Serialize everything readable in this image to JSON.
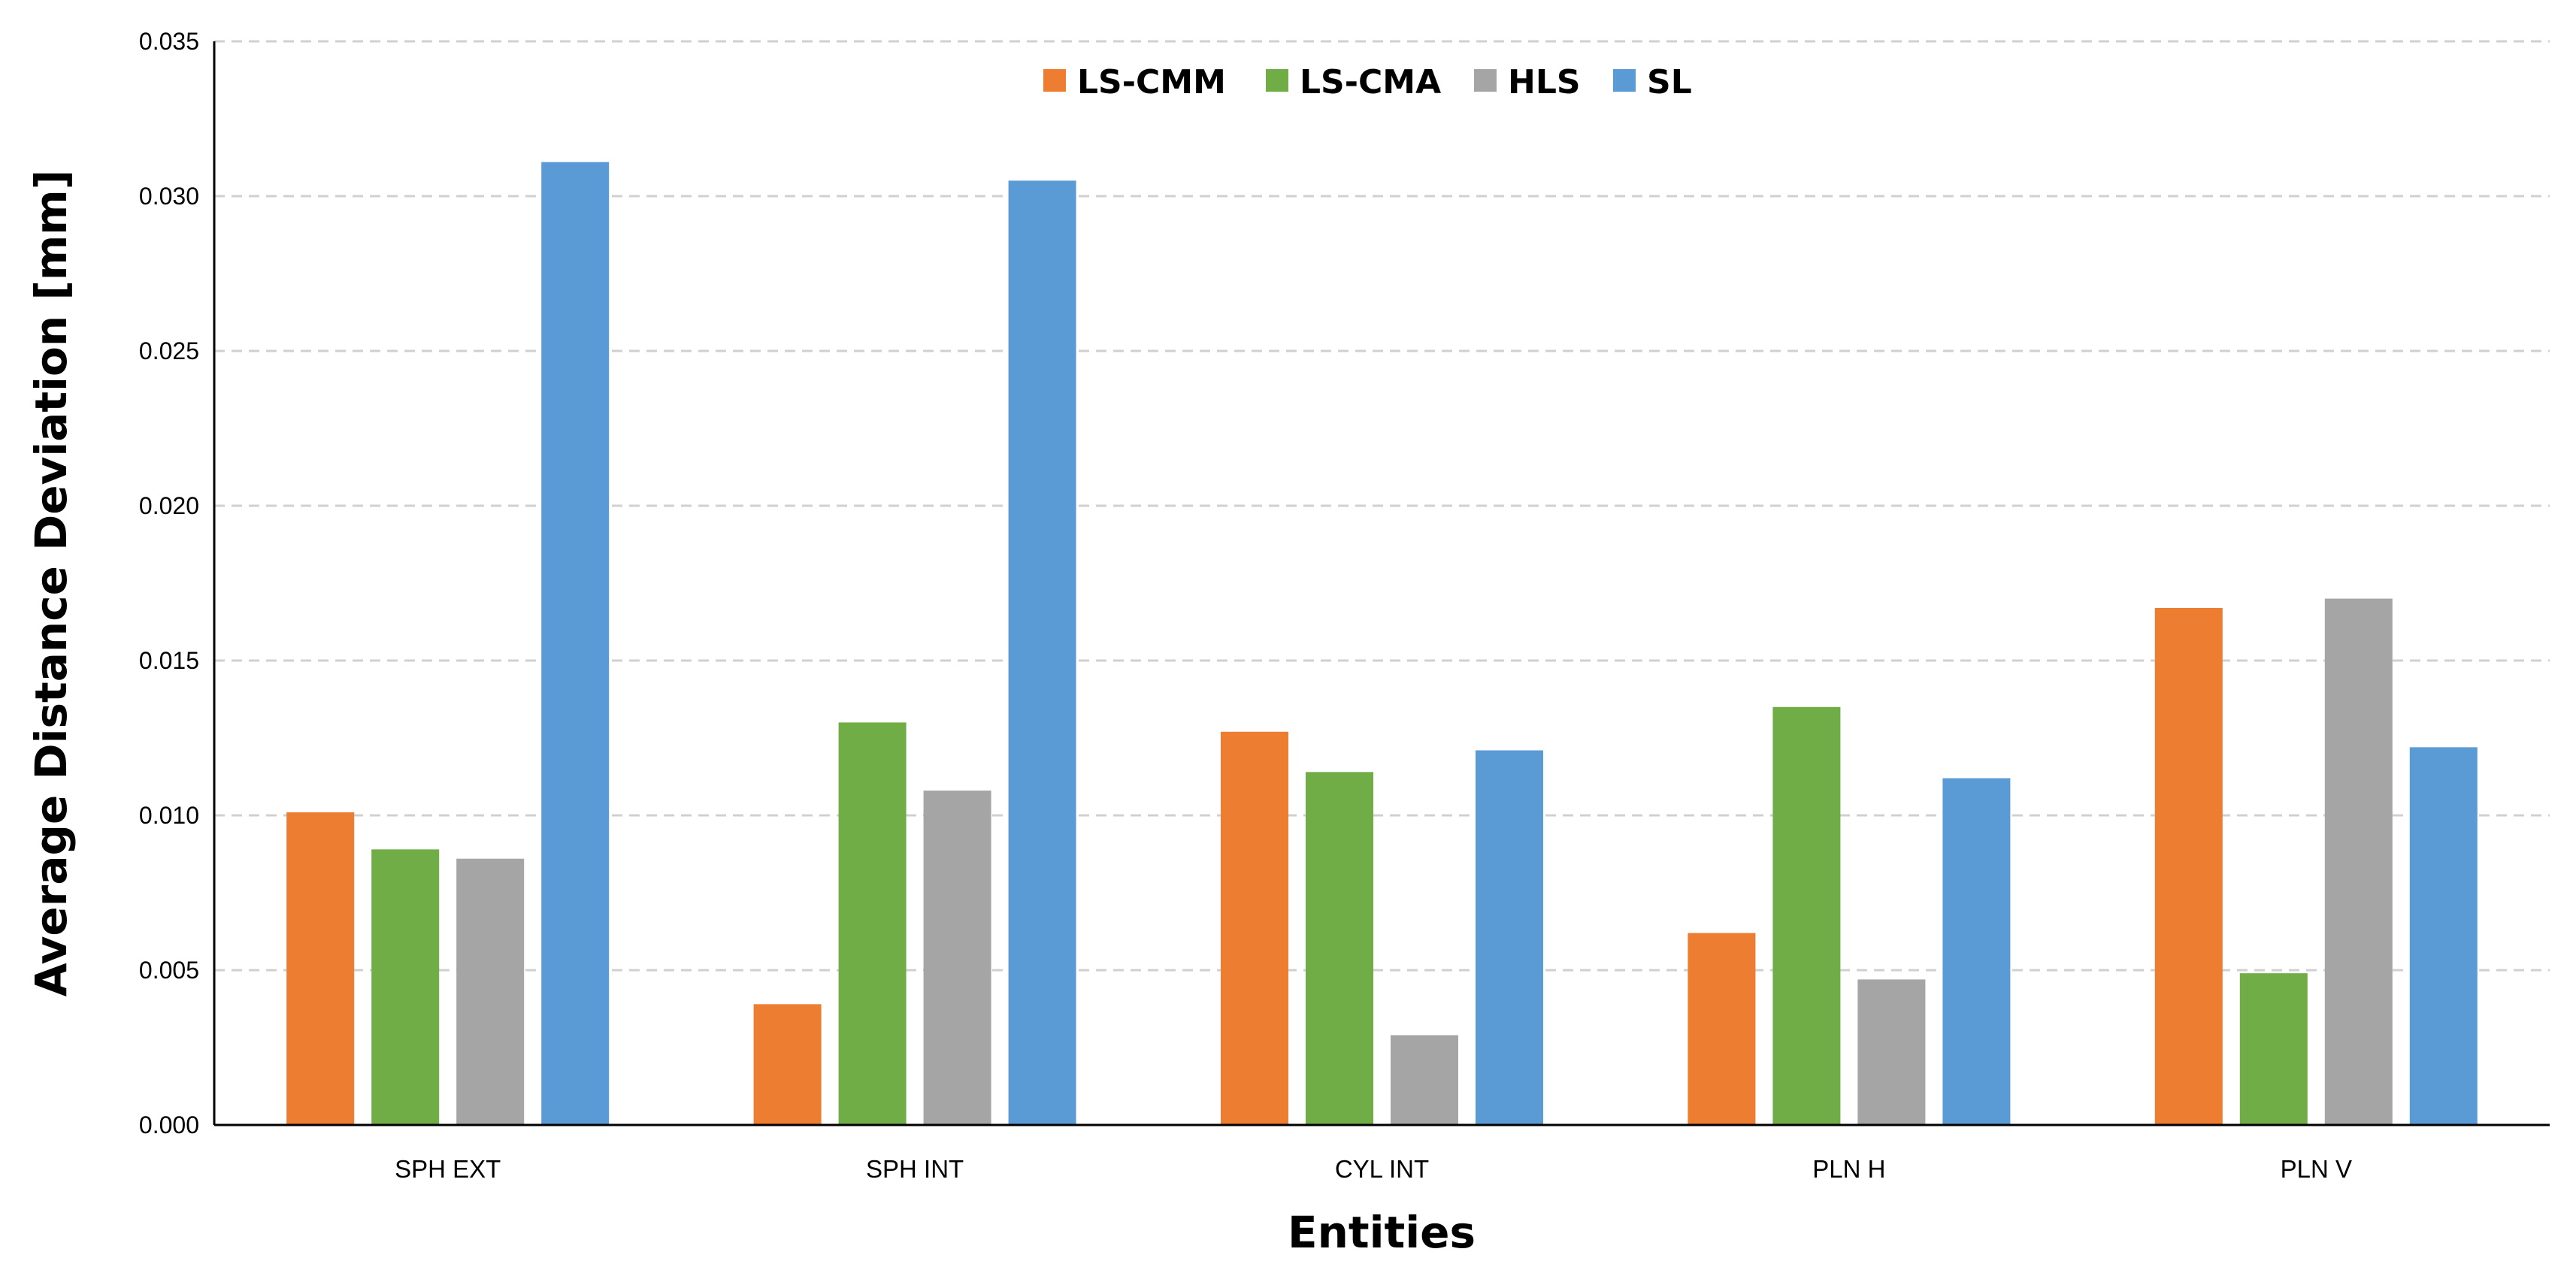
{
  "chart_data": {
    "type": "bar",
    "title": "",
    "xlabel": "Entities",
    "ylabel": "Average Distance Deviation [mm]",
    "ylim": [
      0,
      0.035
    ],
    "ytick_values": [
      0,
      0.005,
      0.01,
      0.015,
      0.02,
      0.025,
      0.03,
      0.035
    ],
    "ytick_labels": [
      "0.000",
      "0.005",
      "0.010",
      "0.015",
      "0.020",
      "0.025",
      "0.030",
      "0.035"
    ],
    "grid": "horizontal dashed",
    "legend_position": "top-center",
    "categories": [
      "SPH EXT",
      "SPH INT",
      "CYL INT",
      "PLN H",
      "PLN V"
    ],
    "series": [
      {
        "name": "LS-CMM",
        "color": "#ED7D31",
        "values": [
          0.0101,
          0.0039,
          0.0127,
          0.0062,
          0.0167
        ]
      },
      {
        "name": "LS-CMA",
        "color": "#70AD47",
        "values": [
          0.0089,
          0.013,
          0.0114,
          0.0135,
          0.0049
        ]
      },
      {
        "name": "HLS",
        "color": "#A5A5A5",
        "values": [
          0.0086,
          0.0108,
          0.0029,
          0.0047,
          0.017
        ]
      },
      {
        "name": "SL",
        "color": "#5B9BD5",
        "values": [
          0.0311,
          0.0305,
          0.0121,
          0.0112,
          0.0122
        ]
      }
    ]
  }
}
